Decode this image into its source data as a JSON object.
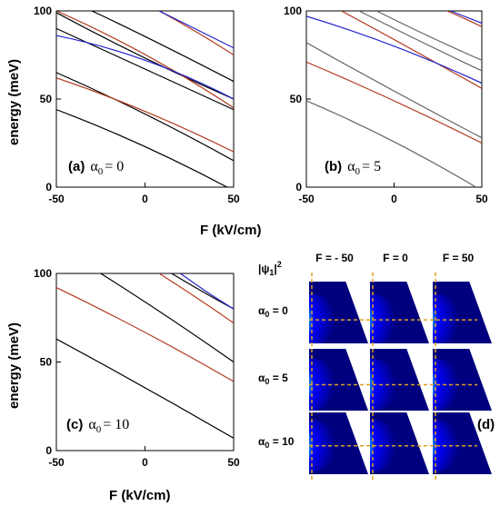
{
  "colors": {
    "black": "#000000",
    "red": "#b23a1e",
    "blue": "#2222cc",
    "gray": "#666666",
    "guide": "#e0a020"
  },
  "figure": {
    "xlabel_top": "F (kV/cm)",
    "xlabel_bottom": "F (kV/cm)",
    "ylabel_top": "energy (meV)",
    "ylabel_bottom": "energy (meV)"
  },
  "chart_data": [
    {
      "type": "line",
      "panel": "a",
      "label": "(a) α₀ = 0",
      "label_prefix": "(a)",
      "alpha_value": "0",
      "xlim": [
        -50,
        50
      ],
      "ylim": [
        0,
        100
      ],
      "xticks": [
        "-50",
        "0",
        "50"
      ],
      "yticks": [
        "0",
        "50",
        "100"
      ],
      "series": [
        {
          "color": "black",
          "x": [
            -50,
            0,
            50
          ],
          "y": [
            44,
            25,
            -2
          ]
        },
        {
          "color": "black",
          "x": [
            -50,
            0,
            50
          ],
          "y": [
            65,
            43,
            15
          ]
        },
        {
          "color": "black",
          "x": [
            -50,
            0,
            50
          ],
          "y": [
            90,
            67,
            44
          ]
        },
        {
          "color": "black",
          "x": [
            -50,
            0,
            50
          ],
          "y": [
            99,
            72,
            50
          ]
        },
        {
          "color": "black",
          "x": [
            -30,
            0,
            50
          ],
          "y": [
            100,
            86,
            60
          ]
        },
        {
          "color": "red",
          "x": [
            -50,
            0,
            50
          ],
          "y": [
            62,
            45,
            20
          ]
        },
        {
          "color": "red",
          "x": [
            -50,
            0,
            50
          ],
          "y": [
            100,
            78,
            45
          ]
        },
        {
          "color": "red",
          "x": [
            8,
            30,
            50
          ],
          "y": [
            100,
            88,
            75
          ]
        },
        {
          "color": "blue",
          "x": [
            -50,
            0,
            50
          ],
          "y": [
            86,
            76,
            50
          ]
        },
        {
          "color": "blue",
          "x": [
            8,
            30,
            50
          ],
          "y": [
            100,
            89,
            79
          ]
        }
      ]
    },
    {
      "type": "line",
      "panel": "b",
      "label": "(b) α₀ = 5",
      "label_prefix": "(b)",
      "alpha_value": "5",
      "xlim": [
        -50,
        50
      ],
      "ylim": [
        0,
        100
      ],
      "xticks": [
        "-50",
        "0",
        "50"
      ],
      "yticks": [
        "0",
        "50",
        "100"
      ],
      "series": [
        {
          "color": "gray",
          "x": [
            -50,
            0,
            50
          ],
          "y": [
            49,
            28,
            -2
          ]
        },
        {
          "color": "gray",
          "x": [
            -50,
            0,
            50
          ],
          "y": [
            82,
            54,
            28
          ]
        },
        {
          "color": "gray",
          "x": [
            -20,
            20,
            50
          ],
          "y": [
            100,
            80,
            66
          ]
        },
        {
          "color": "gray",
          "x": [
            -10,
            20,
            50
          ],
          "y": [
            100,
            85,
            72
          ]
        },
        {
          "color": "red",
          "x": [
            -50,
            0,
            50
          ],
          "y": [
            71,
            50,
            25
          ]
        },
        {
          "color": "red",
          "x": [
            -30,
            0,
            50
          ],
          "y": [
            100,
            84,
            56
          ]
        },
        {
          "color": "red",
          "x": [
            30,
            40,
            50
          ],
          "y": [
            100,
            96,
            91
          ]
        },
        {
          "color": "blue",
          "x": [
            -50,
            0,
            50
          ],
          "y": [
            97,
            82,
            59
          ]
        },
        {
          "color": "blue",
          "x": [
            32,
            40,
            50
          ],
          "y": [
            100,
            97,
            93
          ]
        }
      ]
    },
    {
      "type": "line",
      "panel": "c",
      "label": "(c) α₀ = 10",
      "label_prefix": "(c)",
      "alpha_value": "10",
      "xlim": [
        -50,
        50
      ],
      "ylim": [
        0,
        100
      ],
      "xticks": [
        "-50",
        "0",
        "50"
      ],
      "yticks": [
        "0",
        "50",
        "100"
      ],
      "series": [
        {
          "color": "black",
          "x": [
            -50,
            0,
            50
          ],
          "y": [
            63,
            36,
            7
          ]
        },
        {
          "color": "black",
          "x": [
            -25,
            10,
            50
          ],
          "y": [
            100,
            78,
            50
          ]
        },
        {
          "color": "black",
          "x": [
            15,
            35,
            50
          ],
          "y": [
            100,
            88,
            80
          ]
        },
        {
          "color": "red",
          "x": [
            -50,
            0,
            50
          ],
          "y": [
            92,
            68,
            39
          ]
        },
        {
          "color": "red",
          "x": [
            8,
            30,
            50
          ],
          "y": [
            100,
            86,
            72
          ]
        },
        {
          "color": "blue",
          "x": [
            20,
            35,
            50
          ],
          "y": [
            100,
            89,
            80
          ]
        }
      ]
    },
    {
      "type": "heatmap",
      "panel": "d",
      "label": "(d)",
      "title": "|ψ1|²",
      "columns": [
        "F = - 50",
        "F = 0",
        "F = 50"
      ],
      "rows": [
        "α₀ = 0",
        "α₀ = 5",
        "α₀ = 10"
      ],
      "row_alpha": [
        "0",
        "5",
        "10"
      ],
      "colormap": [
        "#00007f",
        "#0000ff",
        "#00ffff",
        "#ffff00",
        "#ff0000",
        "#7f0000"
      ]
    }
  ]
}
